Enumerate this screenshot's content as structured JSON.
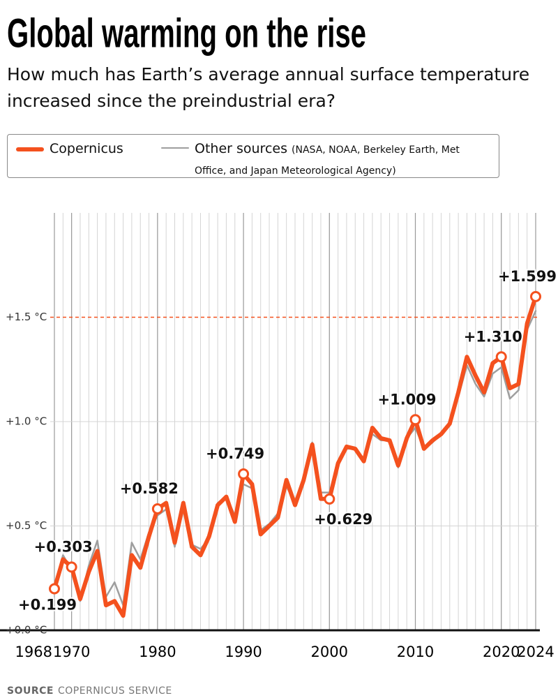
{
  "chart_data": {
    "type": "line",
    "title": "Global warming on the rise",
    "subtitle": "How much has Earth’s average annual surface temperature increased since the preindustrial era?",
    "legend_note": "(NASA, NOAA, Berkeley Earth, Met Office, and Japan Meteorological Agency)",
    "source_label": "SOURCE",
    "source": "COPERNICUS SERVICE",
    "x": [
      1968,
      1969,
      1970,
      1971,
      1972,
      1973,
      1974,
      1975,
      1976,
      1977,
      1978,
      1979,
      1980,
      1981,
      1982,
      1983,
      1984,
      1985,
      1986,
      1987,
      1988,
      1989,
      1990,
      1991,
      1992,
      1993,
      1994,
      1995,
      1996,
      1997,
      1998,
      1999,
      2000,
      2001,
      2002,
      2003,
      2004,
      2005,
      2006,
      2007,
      2008,
      2009,
      2010,
      2011,
      2012,
      2013,
      2014,
      2015,
      2016,
      2017,
      2018,
      2019,
      2020,
      2021,
      2022,
      2023,
      2024
    ],
    "series": [
      {
        "name": "Other sources",
        "color": "#9e9e9e",
        "values": [
          0.21,
          0.36,
          0.29,
          0.14,
          0.31,
          0.43,
          0.16,
          0.23,
          0.12,
          0.42,
          0.34,
          0.47,
          0.55,
          0.58,
          0.4,
          0.58,
          0.41,
          0.39,
          0.44,
          0.61,
          0.64,
          0.55,
          0.7,
          0.68,
          0.48,
          0.51,
          0.56,
          0.69,
          0.61,
          0.73,
          0.9,
          0.66,
          0.66,
          0.8,
          0.87,
          0.87,
          0.82,
          0.94,
          0.91,
          0.91,
          0.78,
          0.92,
          0.97,
          0.87,
          0.9,
          0.94,
          0.99,
          1.12,
          1.27,
          1.18,
          1.12,
          1.23,
          1.26,
          1.11,
          1.15,
          1.44,
          1.53
        ]
      },
      {
        "name": "Copernicus",
        "color": "#f4511e",
        "values": [
          0.199,
          0.34,
          0.303,
          0.15,
          0.28,
          0.38,
          0.12,
          0.14,
          0.07,
          0.36,
          0.3,
          0.45,
          0.582,
          0.61,
          0.42,
          0.61,
          0.4,
          0.36,
          0.45,
          0.6,
          0.64,
          0.52,
          0.749,
          0.7,
          0.46,
          0.5,
          0.54,
          0.72,
          0.6,
          0.72,
          0.89,
          0.63,
          0.629,
          0.8,
          0.88,
          0.87,
          0.81,
          0.97,
          0.92,
          0.91,
          0.79,
          0.92,
          1.009,
          0.87,
          0.91,
          0.94,
          0.99,
          1.14,
          1.31,
          1.22,
          1.14,
          1.28,
          1.31,
          1.16,
          1.18,
          1.47,
          1.599
        ],
        "value_labels": [
          "+0.199",
          null,
          "+0.303",
          null,
          null,
          null,
          null,
          null,
          null,
          null,
          null,
          null,
          "+0.582",
          null,
          null,
          null,
          null,
          null,
          null,
          null,
          null,
          null,
          "+0.749",
          null,
          null,
          null,
          null,
          null,
          null,
          null,
          null,
          null,
          "+0.629",
          null,
          null,
          null,
          null,
          null,
          null,
          null,
          null,
          null,
          "+1.009",
          null,
          null,
          null,
          null,
          null,
          null,
          null,
          null,
          null,
          "+1.310",
          null,
          null,
          null,
          "+1.599"
        ]
      }
    ],
    "xlim": [
      1968,
      2024
    ],
    "xticks": [
      1968,
      1970,
      1980,
      1990,
      2000,
      2010,
      2020,
      2024
    ],
    "ylim": [
      0,
      2
    ],
    "yticks": [
      {
        "value": 0,
        "label": "+0.0 °C"
      },
      {
        "value": 0.5,
        "label": "+0.5 °C"
      },
      {
        "value": 1.0,
        "label": "+1.0 °C"
      },
      {
        "value": 1.5,
        "label": "+1.5 °C"
      }
    ],
    "reference_line": {
      "value": 1.5,
      "color": "#f4511e"
    },
    "grid": true
  }
}
